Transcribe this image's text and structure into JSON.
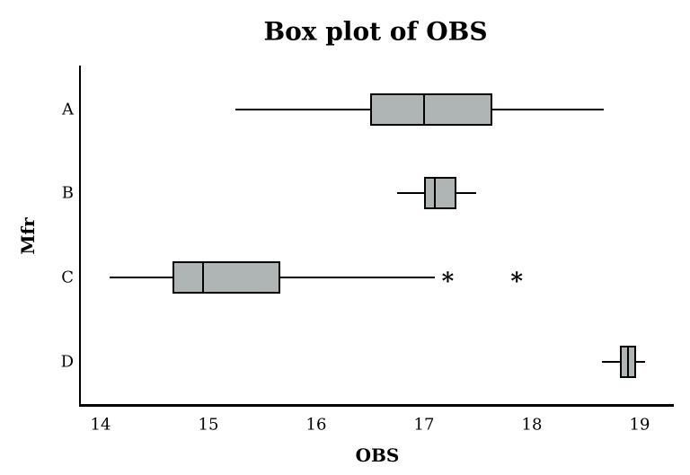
{
  "chart_data": {
    "type": "box",
    "orientation": "horizontal",
    "title": "Box plot of OBS",
    "xlabel": "OBS",
    "ylabel": "Mfr",
    "x_ticks": [
      14,
      15,
      16,
      17,
      18,
      19
    ],
    "xlim": [
      13.8,
      19.32
    ],
    "grid": false,
    "legend": "none",
    "categories": [
      "A",
      "B",
      "C",
      "D"
    ],
    "series": [
      {
        "name": "A",
        "whisker_low": 15.25,
        "q1": 16.5,
        "median": 17.0,
        "q3": 17.63,
        "whisker_high": 18.67,
        "outliers": []
      },
      {
        "name": "B",
        "whisker_low": 16.75,
        "q1": 17.0,
        "median": 17.1,
        "q3": 17.3,
        "whisker_high": 17.48,
        "outliers": []
      },
      {
        "name": "C",
        "whisker_low": 14.08,
        "q1": 14.67,
        "median": 14.95,
        "q3": 15.67,
        "whisker_high": 17.1,
        "outliers": [
          17.22,
          17.86
        ]
      },
      {
        "name": "D",
        "whisker_low": 18.65,
        "q1": 18.82,
        "median": 18.89,
        "q3": 18.97,
        "whisker_high": 19.05,
        "outliers": []
      }
    ],
    "outlier_symbol": "*",
    "box_fill_color": "#afb5b5",
    "line_color": "#000000",
    "background_color": "#ffffff"
  }
}
